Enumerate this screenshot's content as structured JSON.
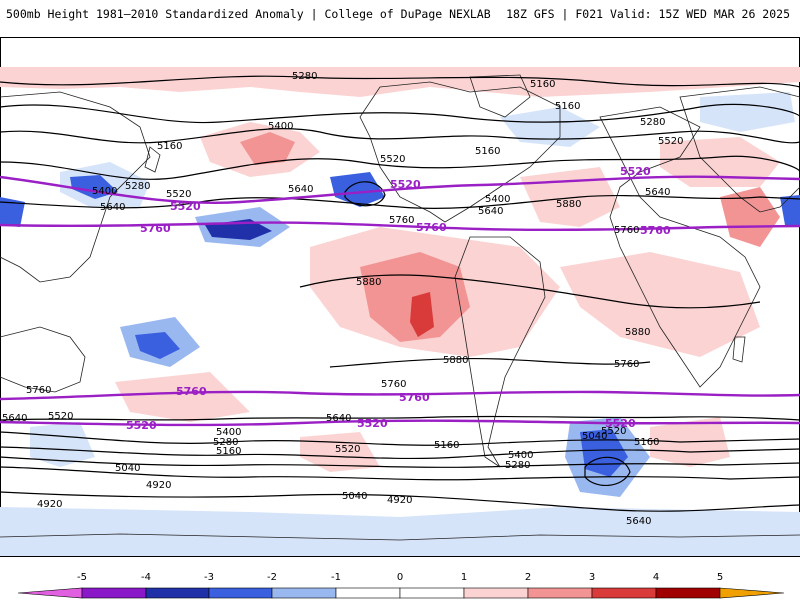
{
  "header": {
    "title": "500mb Height 1981–2010 Standardized Anomaly | College of DuPage NEXLAB",
    "run_info": "18Z GFS | F021 Valid: 15Z WED MAR 26 2025"
  },
  "colors": {
    "major_contour": "#9a1fc4",
    "minor_contour": "#000000",
    "coast": "#222222"
  },
  "colorbar": {
    "ticks": [
      "-5",
      "-4",
      "-3",
      "-2",
      "-1",
      "0",
      "1",
      "2",
      "3",
      "4",
      "5"
    ],
    "colors": [
      "#c000c0",
      "#2030a8",
      "#3a60e0",
      "#9ab8f0",
      "#d6e4fa",
      "#ffffff",
      "#fbd3d3",
      "#f29494",
      "#d93a3a",
      "#a00000",
      "#f0a000"
    ]
  },
  "contour_labels": {
    "northern": [
      "5280",
      "5160",
      "5160",
      "5400",
      "5160",
      "5520",
      "5160",
      "5280",
      "5400",
      "5280",
      "5520",
      "5640",
      "5640",
      "5760",
      "5400",
      "5640",
      "5520",
      "5640",
      "5880",
      "5760",
      "5880",
      "5880",
      "5880",
      "5760"
    ],
    "major": [
      "5520",
      "5520",
      "5520",
      "5760",
      "5760",
      "5760",
      "5760",
      "5760",
      "5520",
      "5520",
      "5520"
    ],
    "southern": [
      "5760",
      "5760",
      "5640",
      "5520",
      "5640",
      "5400",
      "5280",
      "5160",
      "5520",
      "5160",
      "5400",
      "5280",
      "5040",
      "5040",
      "5160",
      "5040",
      "4920",
      "4920",
      "4920",
      "5520",
      "5640"
    ]
  }
}
